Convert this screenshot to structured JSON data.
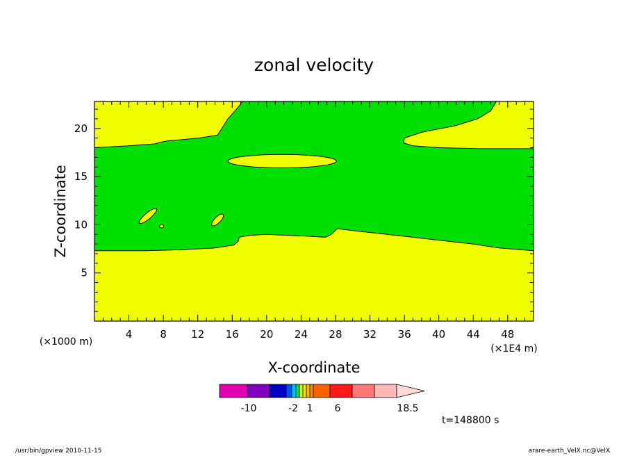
{
  "chart_data": {
    "type": "contour",
    "title": "zonal velocity",
    "xlabel": "X-coordinate",
    "ylabel": "Z-coordinate",
    "x_units": "(×1E4 m)",
    "y_units": "(×1000 m)",
    "xlim": [
      0,
      51
    ],
    "ylim": [
      0,
      22.8
    ],
    "x_ticks": [
      "4",
      "8",
      "12",
      "16",
      "20",
      "24",
      "28",
      "32",
      "36",
      "40",
      "44",
      "48"
    ],
    "y_ticks": [
      "5",
      "10",
      "15",
      "20"
    ],
    "grid": false,
    "fill_colors": {
      "low": "#f0ff00",
      "high": "#00e000"
    },
    "regions": [
      {
        "level": "low",
        "points": [
          [
            0,
            0
          ],
          [
            51,
            0
          ],
          [
            51,
            7.3
          ],
          [
            47,
            7.6
          ],
          [
            44,
            8.0
          ],
          [
            40,
            8.4
          ],
          [
            36,
            8.8
          ],
          [
            32,
            9.2
          ],
          [
            29,
            9.5
          ],
          [
            28.2,
            9.6
          ],
          [
            27.5,
            9.0
          ],
          [
            26.8,
            8.7
          ],
          [
            25,
            8.8
          ],
          [
            20,
            9.0
          ],
          [
            18,
            8.9
          ],
          [
            16.8,
            8.7
          ],
          [
            16.7,
            8.3
          ],
          [
            16.2,
            7.9
          ],
          [
            14,
            7.6
          ],
          [
            10,
            7.4
          ],
          [
            6,
            7.3
          ],
          [
            0,
            7.3
          ]
        ]
      },
      {
        "level": "low",
        "points": [
          [
            0,
            22.8
          ],
          [
            0,
            18.0
          ],
          [
            4,
            18.2
          ],
          [
            7,
            18.4
          ],
          [
            7.8,
            18.6
          ],
          [
            8.5,
            18.7
          ],
          [
            12,
            19.0
          ],
          [
            14.3,
            19.3
          ],
          [
            14.8,
            20.0
          ],
          [
            15.5,
            21.0
          ],
          [
            16.5,
            22.0
          ],
          [
            17.2,
            22.8
          ]
        ]
      },
      {
        "level": "low",
        "points": [
          [
            46.7,
            22.8
          ],
          [
            46,
            21.8
          ],
          [
            44.5,
            21.0
          ],
          [
            42,
            20.3
          ],
          [
            38,
            19.6
          ],
          [
            36,
            19.0
          ],
          [
            35.9,
            18.5
          ],
          [
            37,
            18.2
          ],
          [
            40,
            18.0
          ],
          [
            45,
            17.9
          ],
          [
            51,
            17.9
          ],
          [
            51,
            22.8
          ]
        ]
      }
    ],
    "islands": [
      {
        "level": "low",
        "center": [
          21.8,
          16.6
        ],
        "radii": [
          6.3,
          0.7
        ],
        "angle": 0
      },
      {
        "level": "low",
        "center": [
          6.2,
          10.9
        ],
        "radii": [
          1.3,
          0.32
        ],
        "angle": -40
      },
      {
        "level": "low",
        "center": [
          7.8,
          9.85
        ],
        "radii": [
          0.25,
          0.18
        ],
        "angle": 0
      },
      {
        "level": "low",
        "center": [
          14.3,
          10.5
        ],
        "radii": [
          0.9,
          0.32
        ],
        "angle": -45
      }
    ],
    "colorbar": {
      "levels": [
        "-10",
        "-2",
        "1",
        "6",
        "18.5"
      ],
      "colors": [
        "#e000b0",
        "#8000c0",
        "#0000c0",
        "#0050ff",
        "#00c0ff",
        "#00e060",
        "#c8ff00",
        "#ffe000",
        "#ffb800",
        "#ff8c00",
        "#ff6000",
        "#ff1a1a",
        "#ff7878",
        "#ffb8b8",
        "#ffd8d8"
      ]
    },
    "annotation": "t=148800 s"
  },
  "footer": {
    "left": "/usr/bin/gpview   2010-11-15",
    "right": "arare-earth_VelX.nc@VelX"
  }
}
